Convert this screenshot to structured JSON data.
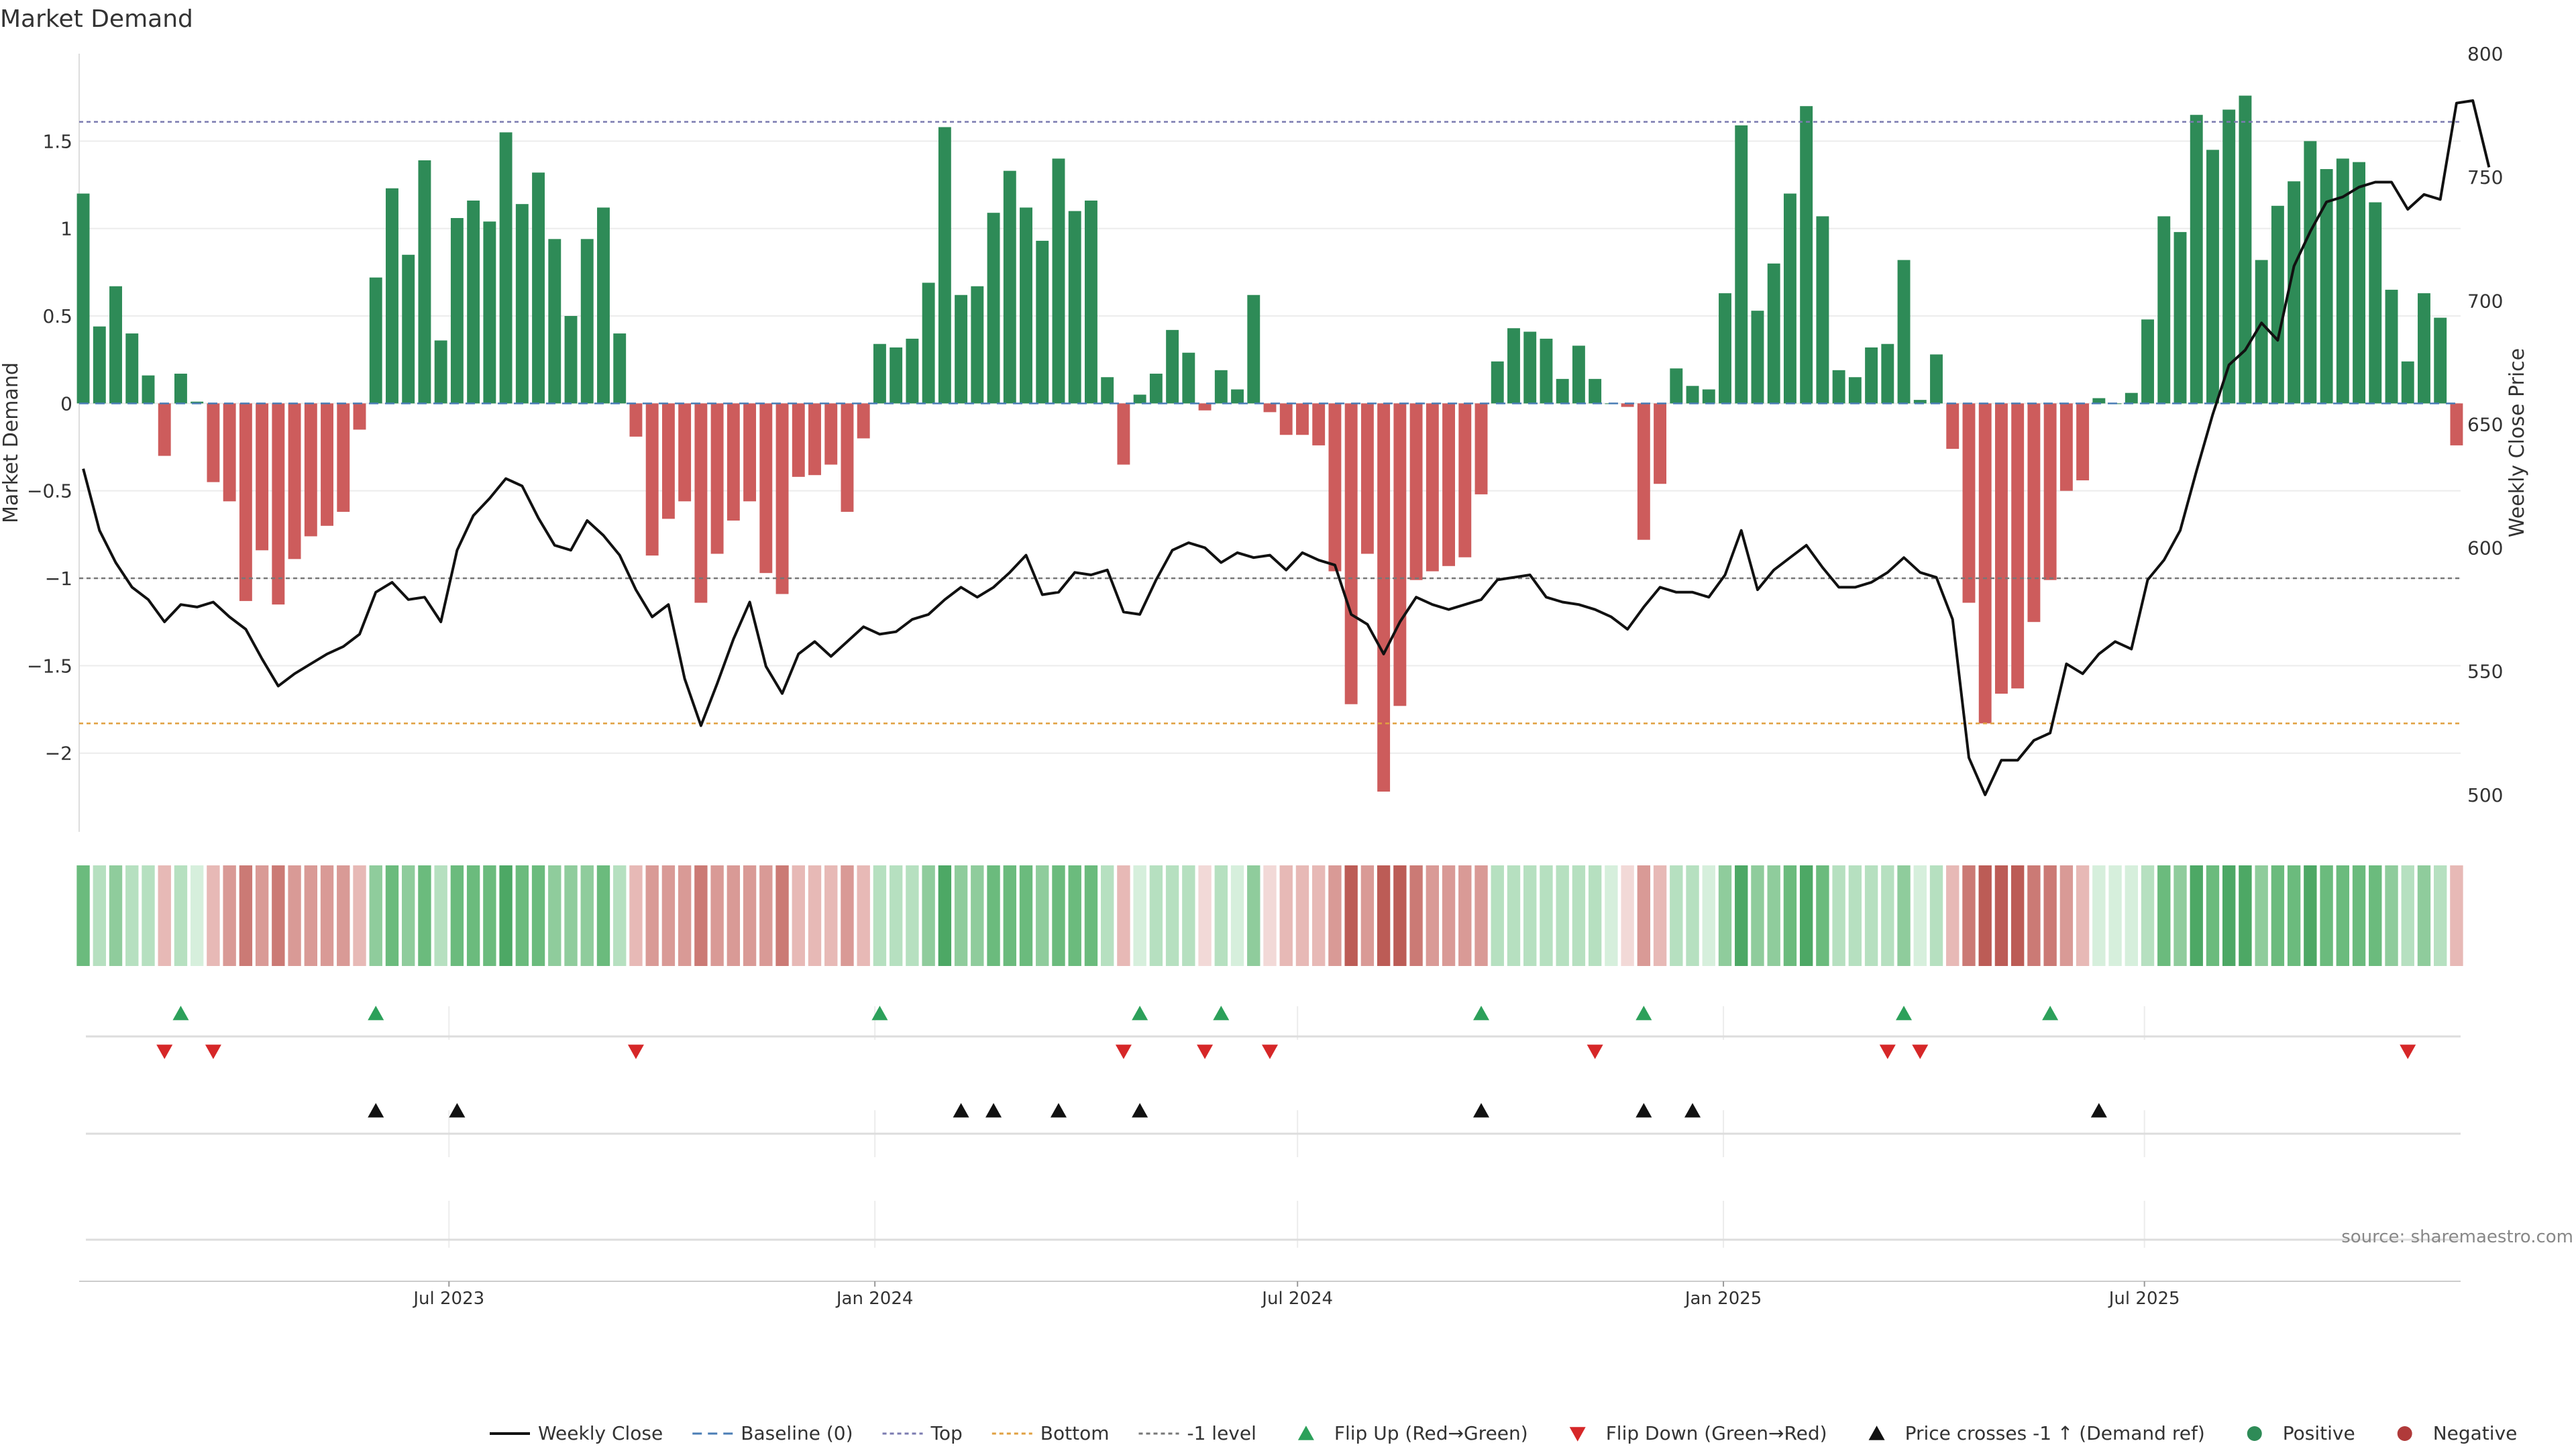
{
  "chart_data": {
    "type": "bar",
    "title": "Market Demand",
    "ylabel": "Market Demand",
    "y2label": "Weekly Close Price",
    "source": "source: sharemaestro.com",
    "ylim": [
      -2.45,
      2.0
    ],
    "y2lim": [
      485,
      800
    ],
    "y_ticks": [
      1.5,
      1,
      0.5,
      0,
      -0.5,
      -1,
      -1.5,
      -2
    ],
    "y_tick_labels": [
      "1.5",
      "1",
      "0.5",
      "0",
      "−0.5",
      "−1",
      "−1.5",
      "−2"
    ],
    "y2_ticks": [
      800,
      750,
      700,
      650,
      600,
      550,
      500
    ],
    "y2_tick_labels": [
      "800",
      "750",
      "700",
      "650",
      "600",
      "550",
      "500"
    ],
    "x_tick_labels": [
      "Jul 2023",
      "Jan 2024",
      "Jul 2024",
      "Jan 2025",
      "Jul 2025"
    ],
    "x_tick_weeks": [
      22.5,
      48.7,
      74.7,
      100.9,
      126.8
    ],
    "levels": {
      "top": 1.61,
      "bottom": -1.83,
      "minus_one": -1.0,
      "baseline": 0
    },
    "demand": [
      1.2,
      0.44,
      0.67,
      0.4,
      0.16,
      -0.3,
      0.17,
      0.01,
      -0.45,
      -0.56,
      -1.13,
      -0.84,
      -1.15,
      -0.89,
      -0.76,
      -0.7,
      -0.62,
      -0.15,
      0.72,
      1.23,
      0.85,
      1.39,
      0.36,
      1.06,
      1.16,
      1.04,
      1.55,
      1.14,
      1.32,
      0.94,
      0.5,
      0.94,
      1.12,
      0.4,
      -0.19,
      -0.87,
      -0.66,
      -0.56,
      -1.14,
      -0.86,
      -0.67,
      -0.56,
      -0.97,
      -1.09,
      -0.42,
      -0.41,
      -0.35,
      -0.62,
      -0.2,
      0.34,
      0.32,
      0.37,
      0.69,
      1.58,
      0.62,
      0.67,
      1.09,
      1.33,
      1.12,
      0.93,
      1.4,
      1.1,
      1.16,
      0.15,
      -0.35,
      0.05,
      0.17,
      0.42,
      0.29,
      -0.04,
      0.19,
      0.08,
      0.62,
      -0.05,
      -0.18,
      -0.18,
      -0.24,
      -0.96,
      -1.72,
      -0.86,
      -2.22,
      -1.73,
      -1.01,
      -0.96,
      -0.93,
      -0.88,
      -0.52,
      0.24,
      0.43,
      0.41,
      0.37,
      0.14,
      0.33,
      0.14,
      0.0,
      -0.02,
      -0.78,
      -0.46,
      0.2,
      0.1,
      0.08,
      0.63,
      1.59,
      0.53,
      0.8,
      1.2,
      1.7,
      1.07,
      0.19,
      0.15,
      0.32,
      0.34,
      0.82,
      0.02,
      0.28,
      -0.26,
      -1.14,
      -1.83,
      -1.66,
      -1.63,
      -1.25,
      -1.01,
      -0.5,
      -0.44,
      0.03,
      0.0,
      0.06,
      0.48,
      1.07,
      0.98,
      1.65,
      1.45,
      1.68,
      1.76,
      0.82,
      1.13,
      1.27,
      1.5,
      1.34,
      1.4,
      1.38,
      1.15,
      0.65,
      0.24,
      0.63,
      0.49,
      -0.24
    ],
    "weekly_close": [
      632,
      607,
      594,
      584,
      579,
      570,
      577,
      576,
      578,
      572,
      567,
      555,
      544,
      549,
      553,
      557,
      560,
      565,
      582,
      586,
      579,
      580,
      570,
      599,
      613,
      620,
      628,
      625,
      612,
      601,
      599,
      611,
      605,
      597,
      583,
      572,
      577,
      547,
      528,
      545,
      563,
      578,
      552,
      541,
      557,
      562,
      556,
      562,
      568,
      565,
      566,
      571,
      573,
      579,
      584,
      580,
      584,
      590,
      597,
      581,
      582,
      590,
      589,
      591,
      574,
      573,
      587,
      599,
      602,
      600,
      594,
      598,
      596,
      597,
      591,
      598,
      595,
      593,
      573,
      569,
      557,
      570,
      580,
      577,
      575,
      577,
      579,
      587,
      588,
      589,
      580,
      578,
      577,
      575,
      572,
      567,
      576,
      584,
      582,
      582,
      580,
      589,
      607,
      583,
      591,
      596,
      601,
      592,
      584,
      584,
      586,
      590,
      596,
      590,
      588,
      571,
      515,
      500,
      514,
      514,
      522,
      525,
      553,
      549,
      557,
      562,
      559,
      587,
      595,
      607,
      631,
      654,
      674,
      680,
      691,
      684,
      714,
      728,
      740,
      742,
      746,
      748,
      748,
      737,
      743,
      741,
      780,
      781,
      754
    ],
    "flip_up_weeks": [
      6,
      18,
      49,
      65,
      70,
      86,
      96,
      112,
      121
    ],
    "flip_down_weeks": [
      5,
      8,
      34,
      64,
      69,
      73,
      93,
      111,
      113,
      143
    ],
    "price_cross_weeks": [
      18,
      23,
      54,
      56,
      60,
      65,
      86,
      96,
      99,
      124
    ],
    "legend": [
      {
        "label": "Weekly Close",
        "kind": "line",
        "color": "#111111"
      },
      {
        "label": "Baseline (0)",
        "kind": "dash",
        "color": "#4a7db5"
      },
      {
        "label": "Top",
        "kind": "dot",
        "color": "#7b7bb0"
      },
      {
        "label": "Bottom",
        "kind": "dot",
        "color": "#e0a040"
      },
      {
        "label": "-1 level",
        "kind": "dot",
        "color": "#777777"
      },
      {
        "label": "Flip Up (Red→Green)",
        "kind": "tri-up",
        "color": "#2ca05a"
      },
      {
        "label": "Flip Down (Green→Red)",
        "kind": "tri-down",
        "color": "#d62728"
      },
      {
        "label": "Price crosses -1 ↑ (Demand ref)",
        "kind": "tri-up",
        "color": "#111111"
      },
      {
        "label": "Positive",
        "kind": "circle",
        "color": "#2e8b57"
      },
      {
        "label": "Negative",
        "kind": "circle",
        "color": "#b03a3a"
      }
    ],
    "colors": {
      "positive": "#2e8b57",
      "negative": "#cd5c5c",
      "price": "#111111"
    }
  }
}
